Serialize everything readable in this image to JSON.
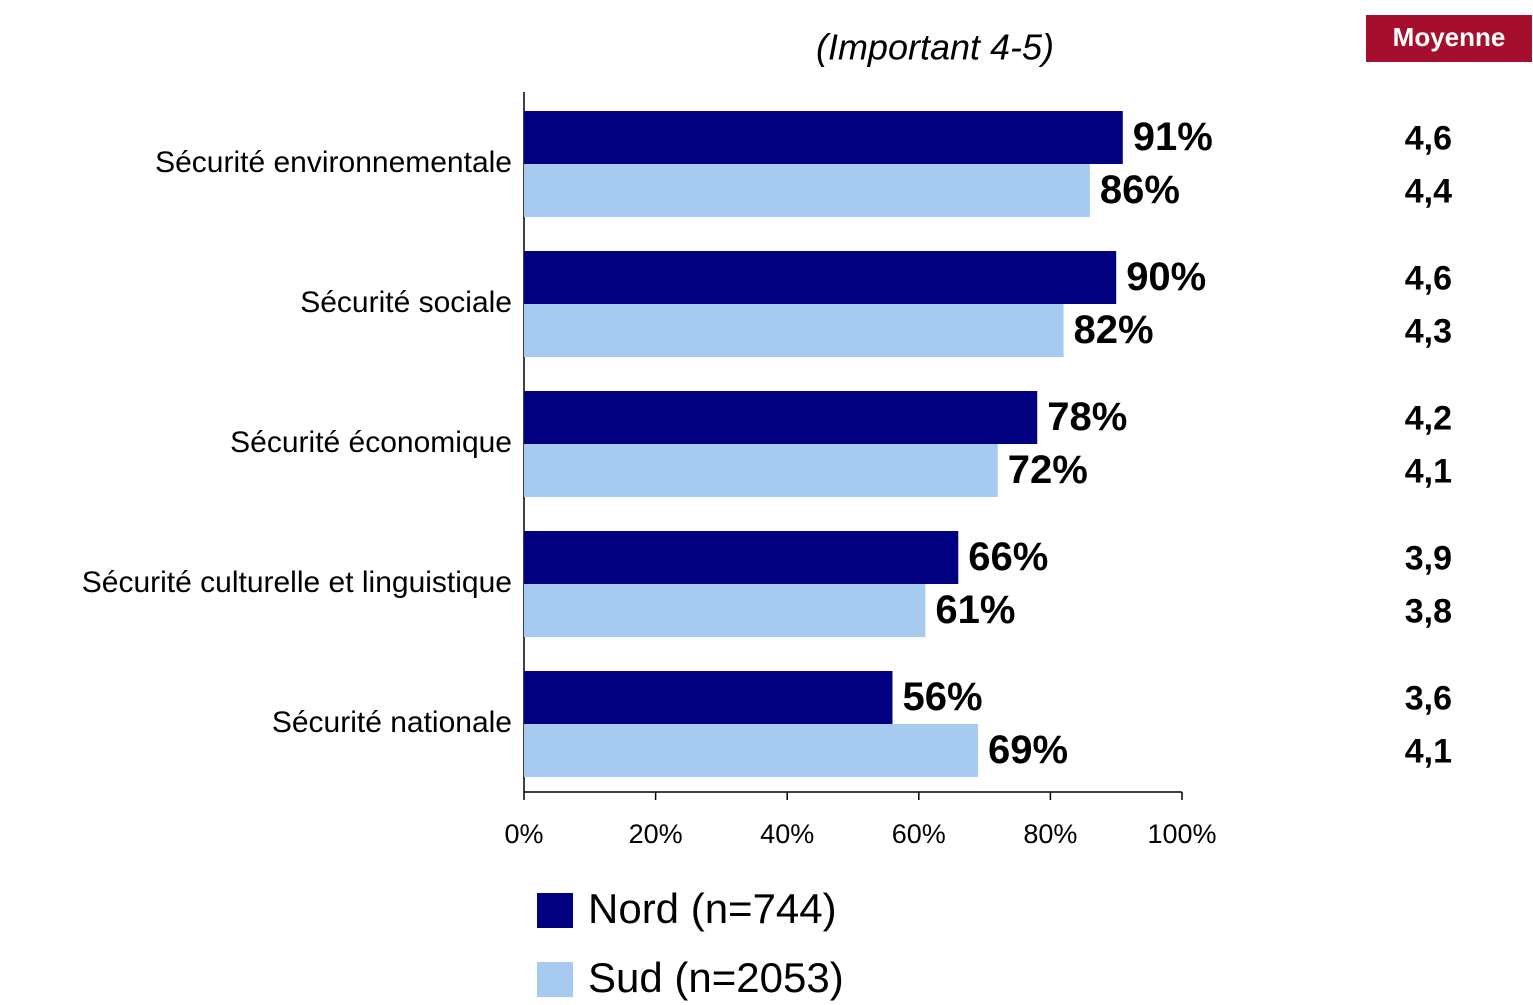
{
  "chart_data": {
    "type": "bar",
    "orientation": "horizontal",
    "subtitle": "(Important 4-5)",
    "mean_header": "Moyenne",
    "categories": [
      "Sécurité environnementale",
      "Sécurité sociale",
      "Sécurité économique",
      "Sécurité culturelle et linguistique",
      "Sécurité nationale"
    ],
    "series": [
      {
        "name": "Nord (n=744)",
        "color": "#000080",
        "values": [
          91,
          90,
          78,
          66,
          56
        ],
        "value_labels": [
          "91%",
          "90%",
          "78%",
          "66%",
          "56%"
        ],
        "means": [
          "4,6",
          "4,6",
          "4,2",
          "3,9",
          "3,6"
        ]
      },
      {
        "name": "Sud (n=2053)",
        "color": "#a6caf0",
        "values": [
          86,
          82,
          72,
          61,
          69
        ],
        "value_labels": [
          "86%",
          "82%",
          "72%",
          "61%",
          "69%"
        ],
        "means": [
          "4,4",
          "4,3",
          "4,1",
          "3,8",
          "4,1"
        ]
      }
    ],
    "xlim": [
      0,
      100
    ],
    "xticks": [
      {
        "value": 0,
        "label": "0%"
      },
      {
        "value": 20,
        "label": "20%"
      },
      {
        "value": 40,
        "label": "40%"
      },
      {
        "value": 60,
        "label": "60%"
      },
      {
        "value": 80,
        "label": "80%"
      },
      {
        "value": 100,
        "label": "100%"
      }
    ],
    "mean_header_color": "#a50f2d"
  }
}
